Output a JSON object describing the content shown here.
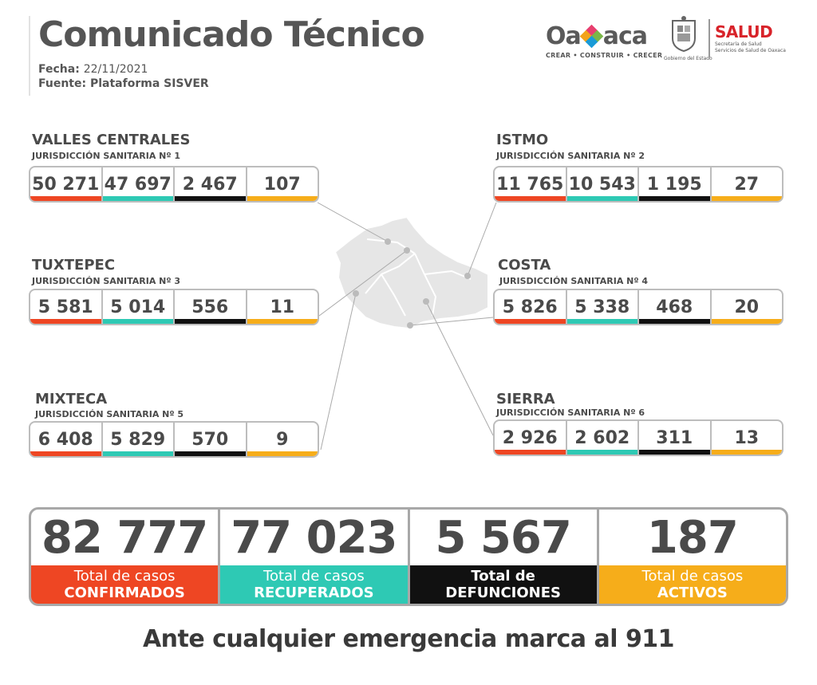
{
  "header": {
    "title": "Comunicado Técnico",
    "fecha_label": "Fecha:",
    "fecha_value": "22/11/2021",
    "fuente_label": "Fuente:",
    "fuente_value": "Plataforma SISVER"
  },
  "logos": {
    "oaxaca_a": "Oa",
    "oaxaca_b": "aca",
    "oaxaca_tagline": "CREAR • CONSTRUIR • CRECER",
    "seal_caption": "Gobierno del Estado",
    "salud_word": "SALUD",
    "salud_sub1": "Secretaría de Salud",
    "salud_sub2": "Servicios de Salud de Oaxaca"
  },
  "colors": {
    "confirmados": "#ee4623",
    "recuperados": "#2ec9b4",
    "defunciones": "#111111",
    "activos": "#f6ad1a"
  },
  "regions": [
    {
      "name": "VALLES CENTRALES",
      "sub": "JURISDICCIÓN SANITARIA Nº 1",
      "values": [
        "50 271",
        "47 697",
        "2 467",
        "107"
      ]
    },
    {
      "name": "ISTMO",
      "sub": "JURISDICCIÓN SANITARIA Nº 2",
      "values": [
        "11 765",
        "10 543",
        "1 195",
        "27"
      ]
    },
    {
      "name": "TUXTEPEC",
      "sub": "JURISDICCIÓN SANITARIA Nº 3",
      "values": [
        "5 581",
        "5 014",
        "556",
        "11"
      ]
    },
    {
      "name": "COSTA",
      "sub": "JURISDICCIÓN SANITARIA Nº 4",
      "values": [
        "5 826",
        "5 338",
        "468",
        "20"
      ]
    },
    {
      "name": "MIXTECA",
      "sub": "JURISDICCIÓN SANITARIA Nº 5",
      "values": [
        "6 408",
        "5 829",
        "570",
        "9"
      ]
    },
    {
      "name": "SIERRA",
      "sub": "JURISDICCIÓN SANITARIA Nº 6",
      "values": [
        "2 926",
        "2 602",
        "311",
        "13"
      ]
    }
  ],
  "totals": [
    {
      "value": "82 777",
      "label1": "Total de casos",
      "label2": "CONFIRMADOS"
    },
    {
      "value": "77 023",
      "label1": "Total de casos",
      "label2": "RECUPERADOS"
    },
    {
      "value": "5 567",
      "label1": "Total de",
      "label2": "DEFUNCIONES"
    },
    {
      "value": "187",
      "label1": "Total de casos",
      "label2": "ACTIVOS"
    }
  ],
  "footer": "Ante cualquier emergencia marca al 911"
}
